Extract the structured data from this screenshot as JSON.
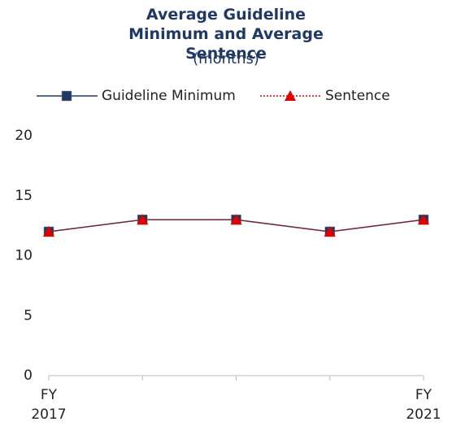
{
  "chart_data": {
    "type": "line",
    "title": "Average Guideline Minimum and Average Sentence",
    "subtitle": "(months)",
    "categories": [
      "FY\n2017",
      null,
      null,
      null,
      "FY\n2021"
    ],
    "series": [
      {
        "name": "Guideline Minimum",
        "color": "#1f3864",
        "marker": "square",
        "values": [
          12,
          13,
          13,
          12,
          13
        ]
      },
      {
        "name": "Sentence",
        "color": "#e00000",
        "marker": "triangle",
        "values": [
          12,
          13,
          13,
          12,
          13
        ]
      }
    ],
    "ylim": [
      0,
      20
    ],
    "yticks": [
      0,
      5,
      10,
      15,
      20
    ],
    "grid": false
  }
}
